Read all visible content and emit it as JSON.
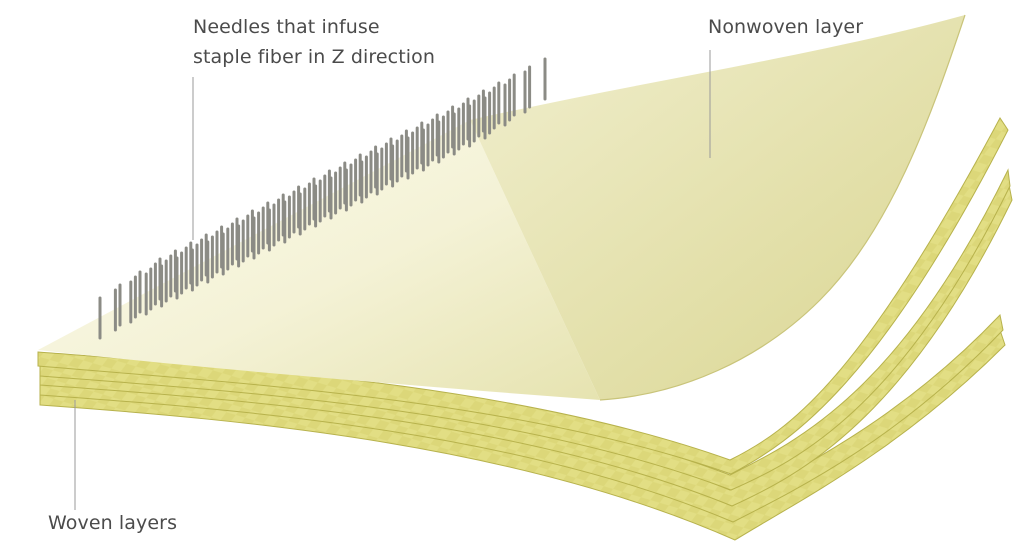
{
  "diagram": {
    "labels": {
      "needles_line1": "Needles that infuse",
      "needles_line2": "staple fiber in Z direction",
      "nonwoven": "Nonwoven layer",
      "woven": "Woven layers"
    },
    "colors": {
      "woven_fill": "#e2de84",
      "woven_edge": "#b7b24c",
      "nonwoven_fill": "#f6f5dd",
      "nonwoven_shade": "#ebe8b8",
      "needle": "#8b8b85",
      "text": "#4b4b4b",
      "leader_line": "#9a9a9a"
    }
  }
}
